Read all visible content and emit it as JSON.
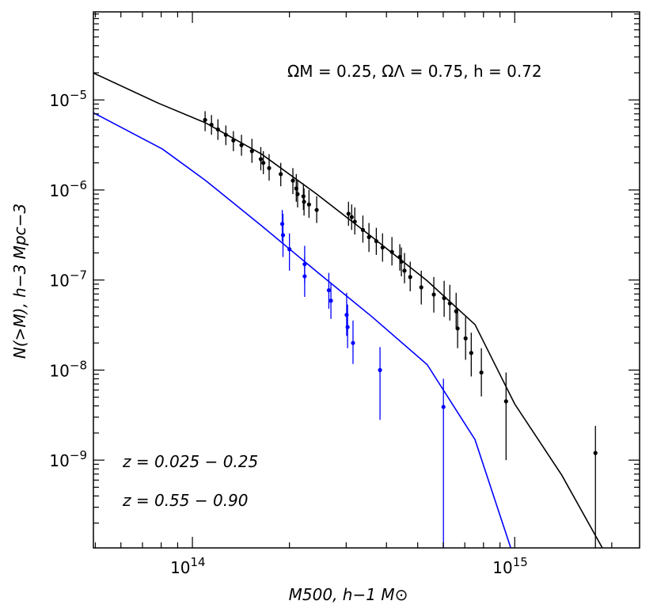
{
  "chart_data": {
    "type": "scatter-errorbar",
    "log_x": true,
    "log_y": true,
    "annotation": "ΩM = 0.25,  ΩΛ = 0.75,  h = 0.72",
    "xlabel": "M500,  h−1 M⊙",
    "ylabel": "N(>M),  h−3 Mpc−3",
    "xlim": [
      49300000000000.0,
      2440000000000000.0
    ],
    "ylim": [
      1.06e-10,
      9.5e-05
    ],
    "xticks": [
      {
        "value": 100000000000000.0,
        "label": "1014"
      },
      {
        "value": 1000000000000000.0,
        "label": "1015"
      }
    ],
    "yticks": [
      {
        "value": 1e-05,
        "label": "10−5"
      },
      {
        "value": 1e-06,
        "label": "10−6"
      },
      {
        "value": 1e-07,
        "label": "10−7"
      },
      {
        "value": 1e-08,
        "label": "10−8"
      },
      {
        "value": 1e-09,
        "label": "10−9"
      }
    ],
    "series": [
      {
        "name": "z = 0.025 − 0.25",
        "color": "#000000",
        "x": [
          109500000000000.0,
          114600000000000.0,
          120000000000000.0,
          127000000000000.0,
          134000000000000.0,
          142000000000000.0,
          153000000000000.0,
          163000000000000.0,
          166000000000000.0,
          173000000000000.0,
          188000000000000.0,
          205000000000000.0,
          210000000000000.0,
          212000000000000.0,
          221000000000000.0,
          222000000000000.0,
          230000000000000.0,
          243000000000000.0,
          305000000000000.0,
          312000000000000.0,
          319000000000000.0,
          338000000000000.0,
          353000000000000.0,
          372000000000000.0,
          389000000000000.0,
          416000000000000.0,
          440000000000000.0,
          445000000000000.0,
          455000000000000.0,
          474000000000000.0,
          513000000000000.0,
          561000000000000.0,
          604000000000000.0,
          629000000000000.0,
          658000000000000.0,
          665000000000000.0,
          704000000000000.0,
          733000000000000.0,
          788000000000000.0,
          940000000000000.0,
          1780000000000000.0
        ],
        "values": [
          6e-06,
          5.3e-06,
          4.7e-06,
          4.1e-06,
          3.55e-06,
          3.15e-06,
          2.7e-06,
          2.2e-06,
          2e-06,
          1.75e-06,
          1.5e-06,
          1.27e-06,
          1.04e-06,
          9e-07,
          8.5e-07,
          7.4e-07,
          6.9e-07,
          6e-07,
          5.45e-07,
          5e-07,
          4.45e-07,
          3.6e-07,
          3e-07,
          2.7e-07,
          2.3e-07,
          2.05e-07,
          1.8e-07,
          1.6e-07,
          1.27e-07,
          1.08e-07,
          8.3e-08,
          6.9e-08,
          6.3e-08,
          5.5e-08,
          4.5e-08,
          2.9e-08,
          2.25e-08,
          1.55e-08,
          9.4e-09,
          4.5e-09,
          1.2e-09
        ],
        "upper": [
          7.5e-06,
          6.8e-06,
          6.1e-06,
          5.2e-06,
          4.5e-06,
          4.1e-06,
          3.7e-06,
          3e-06,
          2.7e-06,
          2.5e-06,
          2e-06,
          1.75e-06,
          1.5e-06,
          1.27e-06,
          1.18e-06,
          1.04e-06,
          1e-06,
          8.5e-07,
          7.4e-07,
          6.9e-07,
          6.4e-07,
          5.2e-07,
          4.3e-07,
          3.8e-07,
          3.3e-07,
          3e-07,
          2.5e-07,
          2.3e-07,
          2e-07,
          1.6e-07,
          1.27e-07,
          1.08e-07,
          9.8e-08,
          8.85e-08,
          7.2e-08,
          4.8e-08,
          3.9e-08,
          2.6e-08,
          1.75e-08,
          9.4e-09,
          2.4e-09
        ],
        "lower": [
          4.5e-06,
          4.1e-06,
          3.6e-06,
          3.15e-06,
          2.7e-06,
          2.4e-06,
          2e-06,
          1.65e-06,
          1.5e-06,
          1.27e-06,
          1.1e-06,
          9e-07,
          7.4e-07,
          6.4e-07,
          6e-07,
          5.2e-07,
          4.9e-07,
          4.3e-07,
          4e-07,
          3.6e-07,
          3.2e-07,
          2.6e-07,
          2.05e-07,
          1.9e-07,
          1.6e-07,
          1.45e-07,
          1.27e-07,
          1.1e-07,
          9.2e-08,
          7.5e-08,
          5.35e-08,
          4.35e-08,
          3.9e-08,
          3.55e-08,
          2.9e-08,
          1.75e-08,
          1.3e-08,
          8.5e-09,
          5.1e-09,
          1e-09,
          1e-10
        ],
        "model": {
          "x": [
            49300000000000.0,
            78400000000000.0,
            110000000000000.0,
            164000000000000.0,
            243000000000000.0,
            361000000000000.0,
            535000000000000.0,
            753000000000000.0,
            1000000000000000.0,
            1400000000000000.0,
            1870000000000000.0
          ],
          "values": [
            1.99e-05,
            9.2e-06,
            5.55e-06,
            2.5e-06,
            9e-07,
            3e-07,
            9.8e-08,
            3.2e-08,
            4.2e-09,
            6.8e-10,
            1.06e-10
          ]
        }
      },
      {
        "name": "z = 0.55 − 0.90",
        "color": "#0000ff",
        "x": [
          190000000000000.0,
          191000000000000.0,
          200000000000000.0,
          223000000000000.0,
          223000000000000.0,
          265000000000000.0,
          269000000000000.0,
          301000000000000.0,
          303000000000000.0,
          315000000000000.0,
          382000000000000.0,
          601000000000000.0
        ],
        "values": [
          4.2e-07,
          3.15e-07,
          2.2e-07,
          1.5e-07,
          1.1e-07,
          7.7e-08,
          5.9e-08,
          4.1e-08,
          3e-08,
          2e-08,
          1e-08,
          3.9e-09
        ],
        "upper": [
          6e-07,
          5.45e-07,
          3.3e-07,
          2.4e-07,
          1.8e-07,
          1.2e-07,
          9.2e-08,
          7.2e-08,
          5.35e-08,
          3.55e-08,
          1.8e-08,
          8e-09
        ],
        "lower": [
          2.7e-07,
          1.8e-07,
          1.27e-07,
          9.2e-08,
          6.5e-08,
          4.8e-08,
          3.7e-08,
          2.4e-08,
          1.75e-08,
          1.17e-08,
          2.8e-09,
          1e-10
        ],
        "model": {
          "x": [
            49300000000000.0,
            80700000000000.0,
            110000000000000.0,
            164000000000000.0,
            243000000000000.0,
            361000000000000.0,
            535000000000000.0,
            753000000000000.0,
            972000000000000.0
          ],
          "values": [
            7.2e-06,
            2.85e-06,
            1.27e-06,
            4e-07,
            1.24e-07,
            3.9e-08,
            1.15e-08,
            1.69e-09,
            1.06e-10
          ]
        }
      }
    ]
  }
}
